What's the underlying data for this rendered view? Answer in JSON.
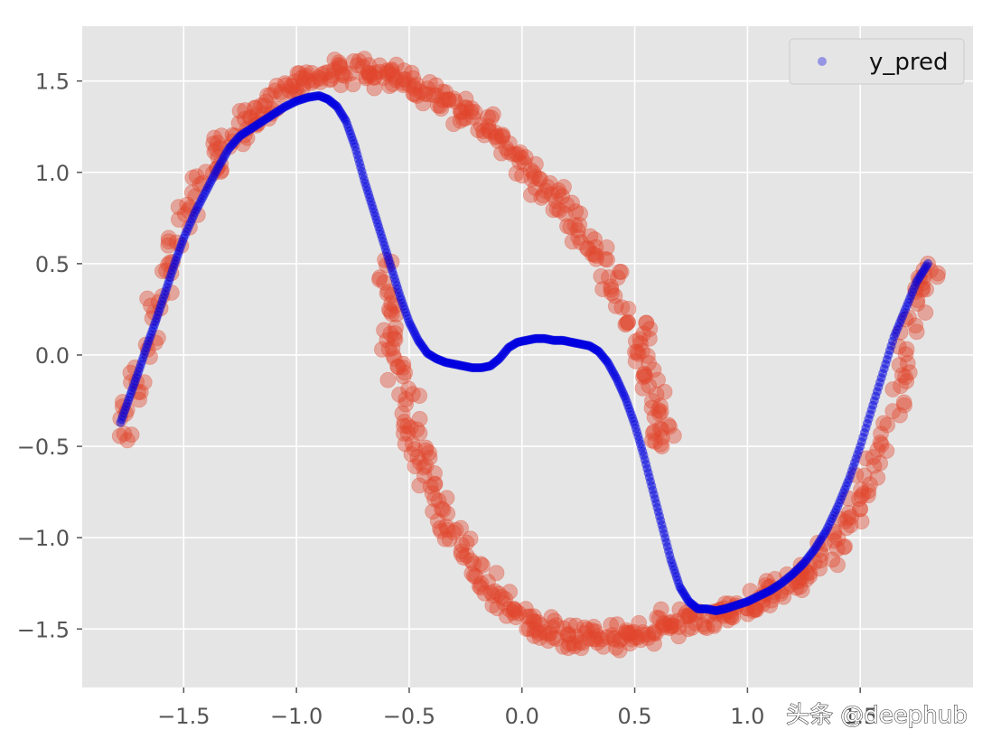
{
  "chart_data": {
    "type": "scatter",
    "title": "",
    "xlabel": "",
    "ylabel": "",
    "xlim": [
      -1.95,
      2.0
    ],
    "ylim": [
      -1.82,
      1.8
    ],
    "grid": true,
    "legend": {
      "placement": "top-right",
      "entries": [
        "y_pred"
      ]
    },
    "x_ticks": [
      -1.5,
      -1.0,
      -0.5,
      0.0,
      0.5,
      1.0,
      1.5
    ],
    "x_tick_labels": [
      "−1.5",
      "−1.0",
      "−0.5",
      "0.0",
      "0.5",
      "1.0",
      "1.5"
    ],
    "y_ticks": [
      1.5,
      1.0,
      0.5,
      0.0,
      -0.5,
      -1.0,
      -1.5
    ],
    "y_tick_labels": [
      "1.5",
      "1.0",
      "0.5",
      "0.0",
      "−0.5",
      "−1.0",
      "−1.5"
    ],
    "series": [
      {
        "color": "#e2472d",
        "alpha": 0.4,
        "shape": "noisy two-arc band",
        "x": [
          -1.78,
          -1.7,
          -1.6,
          -1.5,
          -1.4,
          -1.3,
          -1.2,
          -1.1,
          -1.0,
          -0.9,
          -0.8,
          -0.7,
          -0.6,
          -0.5,
          -0.4,
          -0.3,
          -0.2,
          -0.1,
          0.0,
          0.1,
          0.2,
          0.3,
          0.4,
          0.5,
          0.55,
          0.6,
          0.62,
          -0.6,
          -0.58,
          -0.55,
          -0.5,
          -0.45,
          -0.4,
          -0.3,
          -0.2,
          -0.1,
          0.0,
          0.1,
          0.2,
          0.3,
          0.4,
          0.5,
          0.6,
          0.7,
          0.8,
          0.9,
          1.0,
          1.1,
          1.2,
          1.3,
          1.4,
          1.5,
          1.6,
          1.68,
          1.76,
          1.8
        ],
        "y": [
          -0.5,
          -0.1,
          0.35,
          0.72,
          1.0,
          1.18,
          1.3,
          1.4,
          1.48,
          1.52,
          1.54,
          1.55,
          1.53,
          1.5,
          1.45,
          1.38,
          1.28,
          1.18,
          1.05,
          0.92,
          0.78,
          0.62,
          0.42,
          0.15,
          -0.05,
          -0.35,
          -0.5,
          0.5,
          0.2,
          -0.05,
          -0.35,
          -0.55,
          -0.75,
          -1.0,
          -1.2,
          -1.33,
          -1.43,
          -1.5,
          -1.54,
          -1.56,
          -1.55,
          -1.52,
          -1.5,
          -1.47,
          -1.45,
          -1.42,
          -1.38,
          -1.32,
          -1.25,
          -1.15,
          -1.0,
          -0.8,
          -0.5,
          -0.1,
          0.3,
          0.5
        ]
      },
      {
        "name": "y_pred",
        "color": "#0000e0",
        "x": [
          -1.78,
          -1.74,
          -1.7,
          -1.66,
          -1.62,
          -1.58,
          -1.54,
          -1.5,
          -1.45,
          -1.4,
          -1.35,
          -1.3,
          -1.25,
          -1.2,
          -1.15,
          -1.1,
          -1.05,
          -1.0,
          -0.95,
          -0.9,
          -0.86,
          -0.82,
          -0.78,
          -0.74,
          -0.7,
          -0.66,
          -0.62,
          -0.58,
          -0.54,
          -0.5,
          -0.46,
          -0.42,
          -0.38,
          -0.34,
          -0.3,
          -0.26,
          -0.22,
          -0.18,
          -0.14,
          -0.1,
          -0.06,
          -0.02,
          0.02,
          0.06,
          0.1,
          0.14,
          0.18,
          0.22,
          0.26,
          0.3,
          0.34,
          0.38,
          0.42,
          0.46,
          0.5,
          0.54,
          0.58,
          0.62,
          0.66,
          0.7,
          0.74,
          0.78,
          0.82,
          0.86,
          0.9,
          0.95,
          1.0,
          1.05,
          1.1,
          1.15,
          1.2,
          1.25,
          1.3,
          1.35,
          1.4,
          1.45,
          1.5,
          1.55,
          1.6,
          1.65,
          1.7,
          1.75,
          1.8
        ],
        "y": [
          -0.37,
          -0.23,
          -0.09,
          0.06,
          0.2,
          0.35,
          0.5,
          0.64,
          0.78,
          0.9,
          1.02,
          1.13,
          1.2,
          1.24,
          1.28,
          1.32,
          1.36,
          1.39,
          1.41,
          1.42,
          1.4,
          1.36,
          1.28,
          1.14,
          0.96,
          0.8,
          0.64,
          0.48,
          0.32,
          0.18,
          0.08,
          0.01,
          -0.02,
          -0.04,
          -0.05,
          -0.06,
          -0.07,
          -0.07,
          -0.06,
          -0.02,
          0.04,
          0.07,
          0.08,
          0.09,
          0.09,
          0.08,
          0.08,
          0.07,
          0.06,
          0.05,
          0.02,
          -0.04,
          -0.13,
          -0.24,
          -0.38,
          -0.55,
          -0.74,
          -0.93,
          -1.12,
          -1.27,
          -1.35,
          -1.39,
          -1.39,
          -1.4,
          -1.39,
          -1.37,
          -1.35,
          -1.32,
          -1.29,
          -1.25,
          -1.2,
          -1.14,
          -1.06,
          -0.96,
          -0.83,
          -0.68,
          -0.5,
          -0.3,
          -0.1,
          0.1,
          0.25,
          0.4,
          0.5
        ]
      }
    ]
  },
  "watermark": "头条 @deephub"
}
